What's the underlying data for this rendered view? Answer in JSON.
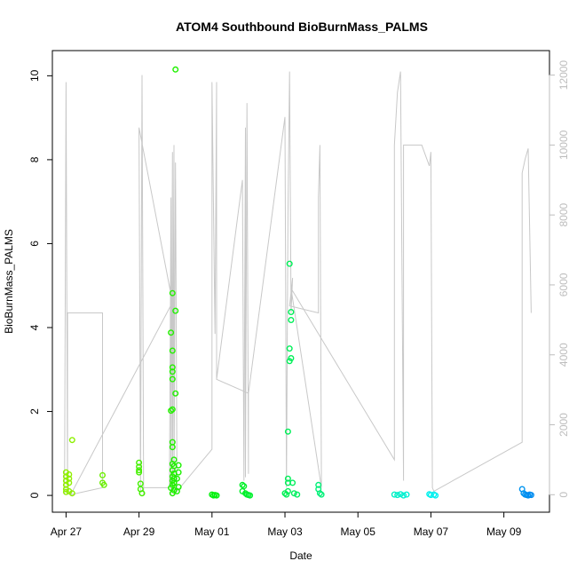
{
  "chart_data": {
    "type": "scatter",
    "title": "ATOM4 Southbound BioBurnMass_PALMS",
    "xlabel": "Date",
    "ylabel": "BioBurnMass_PALMS",
    "x_ticks": [
      "Apr 27",
      "Apr 29",
      "May 01",
      "May 03",
      "May 05",
      "May 07",
      "May 09"
    ],
    "y_ticks": [
      "0",
      "2",
      "4",
      "6",
      "8",
      "10"
    ],
    "y2_ticks": [
      "0",
      "2000",
      "4000",
      "6000",
      "8000",
      "10000",
      "12000"
    ],
    "xlim": [
      "2017-04-26T15:00",
      "2017-05-10T06:00"
    ],
    "ylim": [
      -0.4,
      10.6
    ],
    "y2lim": [
      -500,
      12700
    ],
    "y2_color": "#bdbdbd",
    "points_color_scale": "green-to-blue by time",
    "series": [
      {
        "name": "BioBurnMass_PALMS",
        "kind": "points",
        "points": [
          [
            "2017-04-27T00:00",
            0.55
          ],
          [
            "2017-04-27T00:00",
            0.45
          ],
          [
            "2017-04-27T00:00",
            0.35
          ],
          [
            "2017-04-27T00:00",
            0.25
          ],
          [
            "2017-04-27T00:00",
            0.15
          ],
          [
            "2017-04-27T00:00",
            0.08
          ],
          [
            "2017-04-27T02:00",
            0.5
          ],
          [
            "2017-04-27T02:00",
            0.4
          ],
          [
            "2017-04-27T02:00",
            0.3
          ],
          [
            "2017-04-27T02:00",
            0.1
          ],
          [
            "2017-04-27T04:00",
            1.32
          ],
          [
            "2017-04-27T04:00",
            0.05
          ],
          [
            "2017-04-28T00:00",
            0.48
          ],
          [
            "2017-04-28T00:00",
            0.3
          ],
          [
            "2017-04-28T01:00",
            0.25
          ],
          [
            "2017-04-29T00:00",
            0.78
          ],
          [
            "2017-04-29T00:00",
            0.68
          ],
          [
            "2017-04-29T00:00",
            0.6
          ],
          [
            "2017-04-29T00:00",
            0.55
          ],
          [
            "2017-04-29T01:00",
            0.28
          ],
          [
            "2017-04-29T01:00",
            0.15
          ],
          [
            "2017-04-29T02:00",
            0.05
          ],
          [
            "2017-04-29T22:00",
            4.82
          ],
          [
            "2017-04-29T21:00",
            3.88
          ],
          [
            "2017-04-29T22:00",
            3.45
          ],
          [
            "2017-04-29T22:00",
            3.05
          ],
          [
            "2017-04-29T22:00",
            2.95
          ],
          [
            "2017-04-29T22:00",
            2.77
          ],
          [
            "2017-04-29T21:00",
            2.02
          ],
          [
            "2017-04-29T22:00",
            2.05
          ],
          [
            "2017-04-29T22:00",
            1.27
          ],
          [
            "2017-04-29T22:00",
            1.15
          ],
          [
            "2017-04-29T23:00",
            0.85
          ],
          [
            "2017-04-29T22:00",
            0.75
          ],
          [
            "2017-04-29T23:00",
            0.7
          ],
          [
            "2017-04-29T22:00",
            0.6
          ],
          [
            "2017-04-29T23:00",
            0.52
          ],
          [
            "2017-04-29T22:00",
            0.45
          ],
          [
            "2017-04-29T23:00",
            0.4
          ],
          [
            "2017-04-29T22:00",
            0.35
          ],
          [
            "2017-04-29T23:00",
            0.3
          ],
          [
            "2017-04-29T22:00",
            0.25
          ],
          [
            "2017-04-29T21:00",
            0.18
          ],
          [
            "2017-04-29T23:00",
            0.12
          ],
          [
            "2017-04-29T22:00",
            0.05
          ],
          [
            "2017-04-30T00:00",
            10.15
          ],
          [
            "2017-04-30T00:00",
            4.4
          ],
          [
            "2017-04-30T00:00",
            2.43
          ],
          [
            "2017-04-30T02:00",
            0.72
          ],
          [
            "2017-04-30T02:00",
            0.55
          ],
          [
            "2017-04-30T01:00",
            0.4
          ],
          [
            "2017-04-30T02:00",
            0.2
          ],
          [
            "2017-04-30T01:00",
            0.1
          ],
          [
            "2017-05-01T00:00",
            0.02
          ],
          [
            "2017-05-01T01:00",
            0.0
          ],
          [
            "2017-05-01T02:00",
            0.01
          ],
          [
            "2017-05-01T03:00",
            0.0
          ],
          [
            "2017-05-01T20:00",
            0.25
          ],
          [
            "2017-05-01T21:00",
            0.22
          ],
          [
            "2017-05-01T20:00",
            0.1
          ],
          [
            "2017-05-01T22:00",
            0.05
          ],
          [
            "2017-05-01T23:00",
            0.02
          ],
          [
            "2017-05-02T00:00",
            0.01
          ],
          [
            "2017-05-02T01:00",
            0.0
          ],
          [
            "2017-05-03T00:00",
            0.05
          ],
          [
            "2017-05-03T01:00",
            0.02
          ],
          [
            "2017-05-03T02:00",
            0.4
          ],
          [
            "2017-05-03T02:00",
            0.3
          ],
          [
            "2017-05-03T02:00",
            0.1
          ],
          [
            "2017-05-03T03:00",
            5.52
          ],
          [
            "2017-05-03T04:00",
            4.37
          ],
          [
            "2017-05-03T04:00",
            4.18
          ],
          [
            "2017-05-03T03:00",
            3.5
          ],
          [
            "2017-05-03T04:00",
            3.27
          ],
          [
            "2017-05-03T03:00",
            3.2
          ],
          [
            "2017-05-03T02:00",
            1.52
          ],
          [
            "2017-05-03T05:00",
            0.3
          ],
          [
            "2017-05-03T06:00",
            0.05
          ],
          [
            "2017-05-03T08:00",
            0.02
          ],
          [
            "2017-05-03T22:00",
            0.25
          ],
          [
            "2017-05-03T22:00",
            0.15
          ],
          [
            "2017-05-03T23:00",
            0.05
          ],
          [
            "2017-05-04T00:00",
            0.02
          ],
          [
            "2017-05-06T00:00",
            0.02
          ],
          [
            "2017-05-06T02:00",
            0.01
          ],
          [
            "2017-05-06T04:00",
            0.03
          ],
          [
            "2017-05-06T06:00",
            0.0
          ],
          [
            "2017-05-06T08:00",
            0.02
          ],
          [
            "2017-05-06T23:00",
            0.03
          ],
          [
            "2017-05-07T00:00",
            0.01
          ],
          [
            "2017-05-07T02:00",
            0.02
          ],
          [
            "2017-05-07T03:00",
            0.0
          ],
          [
            "2017-05-09T12:00",
            0.15
          ],
          [
            "2017-05-09T13:00",
            0.05
          ],
          [
            "2017-05-09T14:00",
            0.02
          ],
          [
            "2017-05-09T15:00",
            0.01
          ],
          [
            "2017-05-09T16:00",
            0.0
          ],
          [
            "2017-05-09T17:00",
            0.02
          ],
          [
            "2017-05-09T18:00",
            0.01
          ]
        ]
      },
      {
        "name": "",
        "kind": "secondary-line",
        "axis": "right",
        "points": [
          [
            "2017-04-26T23:00",
            0
          ],
          [
            "2017-04-27T00:00",
            11800
          ],
          [
            "2017-04-27T01:00",
            0
          ],
          [
            "2017-04-27T01:00",
            5200
          ],
          [
            "2017-04-28T00:00",
            5200
          ],
          [
            "2017-04-28T00:00",
            200
          ],
          [
            "2017-04-27T03:00",
            0
          ],
          [
            "2017-04-29T22:00",
            5500
          ],
          [
            "2017-04-29T00:00",
            10500
          ],
          [
            "2017-04-29T01:00",
            100
          ],
          [
            "2017-04-29T02:00",
            12000
          ],
          [
            "2017-04-29T03:00",
            0
          ],
          [
            "2017-04-29T03:00",
            200
          ],
          [
            "2017-04-29T20:00",
            200
          ],
          [
            "2017-04-29T21:00",
            8500
          ],
          [
            "2017-04-29T21:00",
            0
          ],
          [
            "2017-04-29T22:00",
            9800
          ],
          [
            "2017-04-29T22:00",
            100
          ],
          [
            "2017-04-29T23:00",
            10000
          ],
          [
            "2017-04-29T23:00",
            0
          ],
          [
            "2017-04-30T00:00",
            9500
          ],
          [
            "2017-04-30T01:00",
            100
          ],
          [
            "2017-05-01T00:00",
            1300
          ],
          [
            "2017-05-01T00:00",
            11800
          ],
          [
            "2017-05-01T02:00",
            4600
          ],
          [
            "2017-05-01T03:00",
            11800
          ],
          [
            "2017-05-01T03:00",
            3300
          ],
          [
            "2017-05-02T00:00",
            2900
          ],
          [
            "2017-05-01T03:00",
            3300
          ],
          [
            "2017-05-01T20:00",
            9000
          ],
          [
            "2017-05-01T21:00",
            400
          ],
          [
            "2017-05-01T22:00",
            10500
          ],
          [
            "2017-05-01T22:00",
            500
          ],
          [
            "2017-05-01T23:00",
            11200
          ],
          [
            "2017-05-02T00:00",
            600
          ],
          [
            "2017-05-02T00:00",
            2900
          ],
          [
            "2017-05-03T00:00",
            10800
          ],
          [
            "2017-05-03T01:00",
            200
          ],
          [
            "2017-05-03T02:00",
            8000
          ],
          [
            "2017-05-03T03:00",
            12100
          ],
          [
            "2017-05-03T04:00",
            5200
          ],
          [
            "2017-05-03T05:00",
            6200
          ],
          [
            "2017-05-03T03:00",
            5400
          ],
          [
            "2017-05-03T22:00",
            5200
          ],
          [
            "2017-05-03T22:00",
            8500
          ],
          [
            "2017-05-03T23:00",
            10000
          ],
          [
            "2017-05-04T00:00",
            200
          ],
          [
            "2017-05-03T04:00",
            5900
          ],
          [
            "2017-05-06T00:00",
            1000
          ],
          [
            "2017-05-06T00:00",
            10000
          ],
          [
            "2017-05-06T02:00",
            11500
          ],
          [
            "2017-05-06T04:00",
            12100
          ],
          [
            "2017-05-06T06:00",
            400
          ],
          [
            "2017-05-06T06:00",
            10000
          ],
          [
            "2017-05-06T18:00",
            10000
          ],
          [
            "2017-05-06T23:00",
            9400
          ],
          [
            "2017-05-07T00:00",
            9800
          ],
          [
            "2017-05-07T01:00",
            200
          ],
          [
            "2017-05-07T02:00",
            100
          ],
          [
            "2017-05-09T12:00",
            1500
          ],
          [
            "2017-05-09T12:00",
            9200
          ],
          [
            "2017-05-09T14:00",
            9600
          ],
          [
            "2017-05-09T16:00",
            9900
          ],
          [
            "2017-05-09T18:00",
            5200
          ]
        ]
      }
    ]
  }
}
